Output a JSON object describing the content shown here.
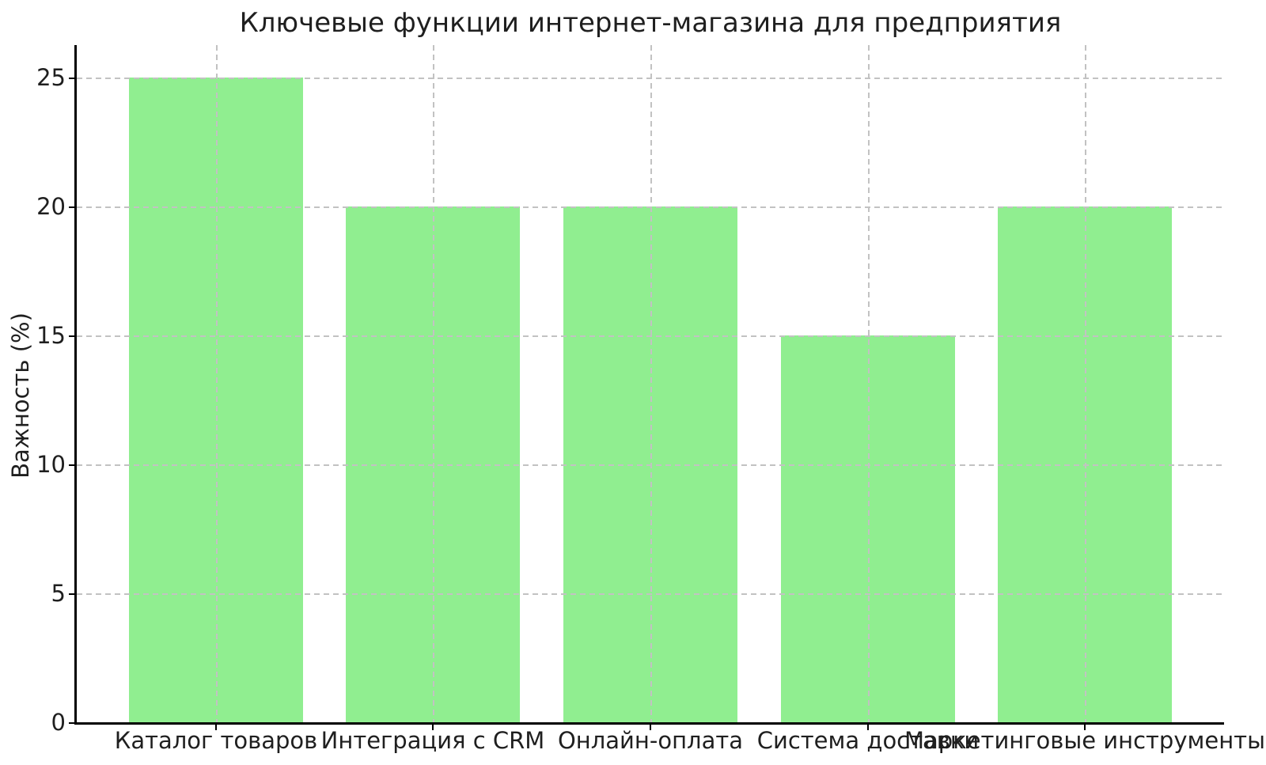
{
  "chart_data": {
    "type": "bar",
    "title": "Ключевые функции интернет-магазина для предприятия",
    "ylabel": "Важность (%)",
    "xlabel": "",
    "categories": [
      "Каталог товаров",
      "Интеграция с CRM",
      "Онлайн-оплата",
      "Система доставки",
      "Маркетинговые инструменты"
    ],
    "values": [
      25,
      20,
      20,
      15,
      20
    ],
    "yticks": [
      0,
      5,
      10,
      15,
      20,
      25
    ],
    "ylim": [
      0,
      26.25
    ],
    "bar_color": "#90EE90",
    "grid": {
      "visible": true,
      "axis": "both",
      "linestyle": "dashed",
      "color": "#c2c2c2",
      "on_top": true
    },
    "spine_color": "#000000",
    "text_color": "#1f1f1f",
    "legend": "none"
  }
}
